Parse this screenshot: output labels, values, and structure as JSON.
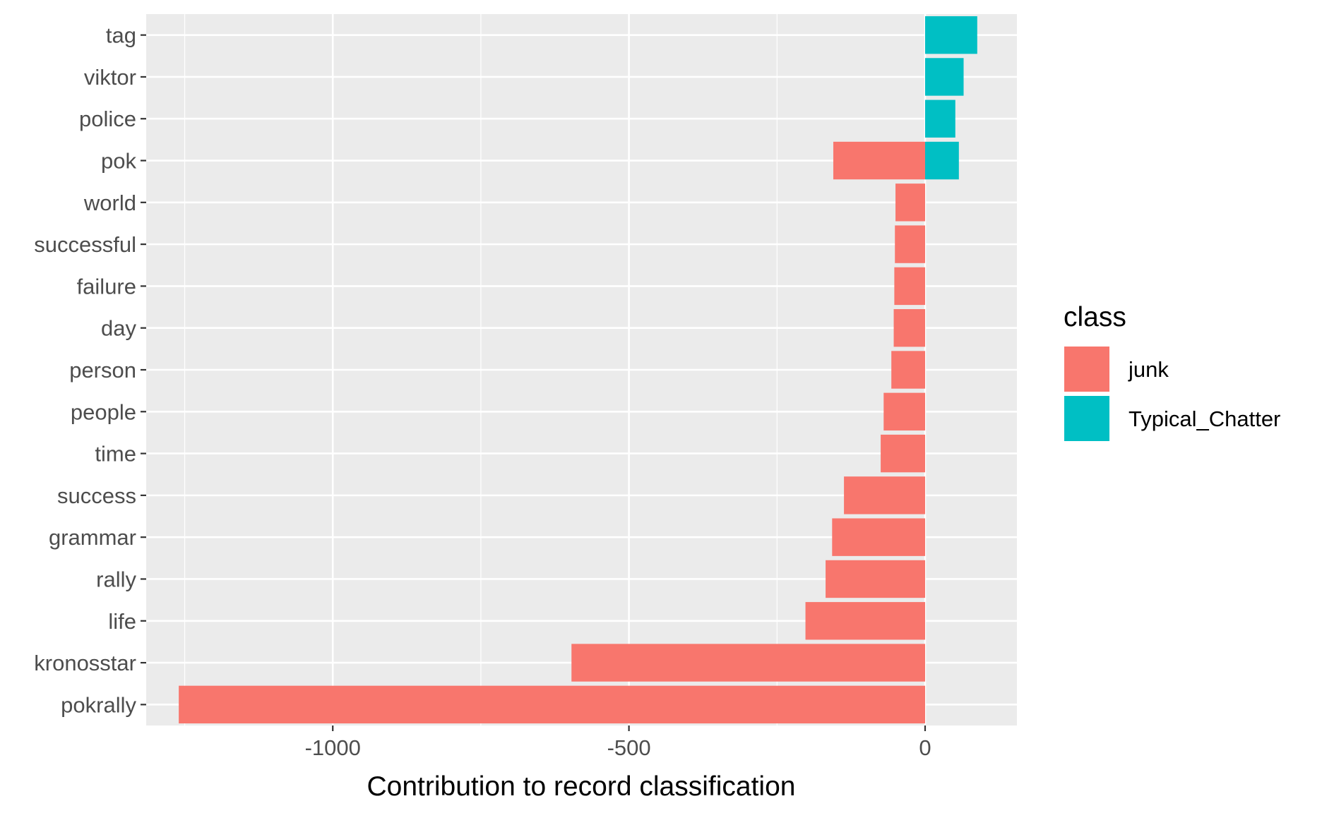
{
  "chart_data": {
    "type": "bar",
    "orientation": "horizontal",
    "stacked": true,
    "title": "",
    "xlabel": "Contribution to record classification",
    "ylabel": "",
    "xlim": [
      -1315,
      155
    ],
    "xticks": [
      -1000,
      -500,
      0
    ],
    "xtick_labels": [
      "-1000",
      "-500",
      "0"
    ],
    "grid": true,
    "legend_position": "right",
    "legend_title": "class",
    "categories": [
      "tag",
      "viktor",
      "police",
      "pok",
      "world",
      "successful",
      "failure",
      "day",
      "person",
      "people",
      "time",
      "success",
      "grammar",
      "rally",
      "life",
      "kronosstar",
      "pokrally"
    ],
    "series": [
      {
        "name": "junk",
        "color": "#F8766D",
        "values": [
          0,
          0,
          0,
          -155,
          -50,
          -51,
          -52,
          -53,
          -57,
          -70,
          -75,
          -137,
          -157,
          -168,
          -202,
          -597,
          -1260
        ]
      },
      {
        "name": "Typical_Chatter",
        "color": "#00BFC4",
        "values": [
          88,
          65,
          51,
          57,
          0,
          0,
          0,
          0,
          0,
          0,
          0,
          0,
          0,
          0,
          0,
          0,
          0
        ]
      }
    ]
  }
}
